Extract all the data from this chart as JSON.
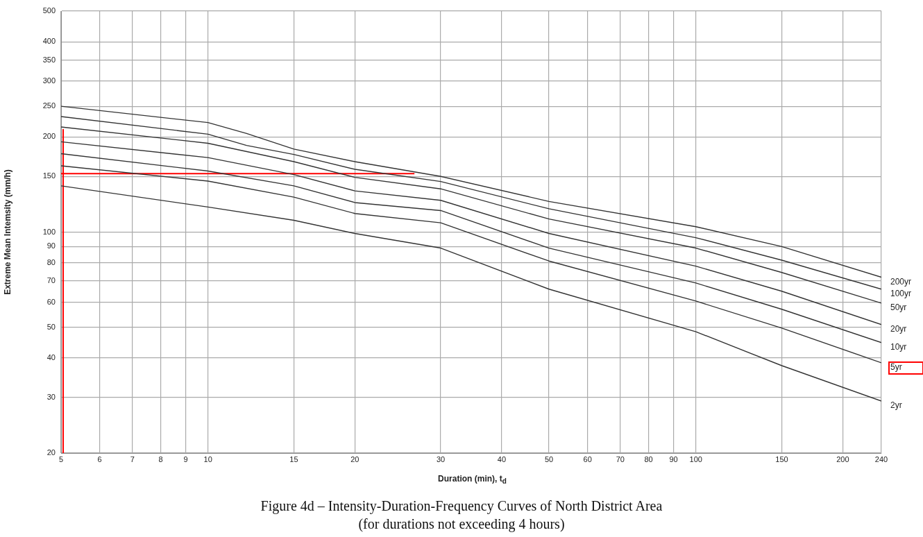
{
  "chart_data": {
    "type": "line",
    "title": "Figure 4d – Intensity-Duration-Frequency Curves of North District Area",
    "subtitle": "(for durations not exceeding 4 hours)",
    "xlabel": "Duration (min), t$_{d}$",
    "ylabel": "Extreme Mean Intemsity (mm/h)",
    "log": "xy",
    "grid": true,
    "legend": false,
    "marker": "none",
    "line_style": "solid",
    "x": [
      5,
      10,
      15,
      20,
      30,
      50,
      100,
      150,
      240
    ],
    "xlim": [
      5,
      240
    ],
    "xticks": [
      5,
      6,
      7,
      8,
      9,
      10,
      15,
      20,
      30,
      40,
      50,
      60,
      70,
      80,
      90,
      100,
      150,
      200,
      240
    ],
    "ylim": [
      20,
      500
    ],
    "yticks": [
      20,
      30,
      40,
      50,
      60,
      70,
      80,
      90,
      100,
      150,
      200,
      250,
      300,
      350,
      400,
      500
    ],
    "series": [
      {
        "name": "200yr",
        "color": "#333333",
        "x": [
          5,
          10,
          12,
          15,
          20,
          30,
          50,
          100,
          150,
          240
        ],
        "values": [
          250,
          222,
          205,
          183,
          167,
          150,
          125,
          104,
          90,
          72
        ]
      },
      {
        "name": "100yr",
        "color": "#333333",
        "x": [
          5,
          10,
          12,
          15,
          20,
          30,
          50,
          100,
          150,
          240
        ],
        "values": [
          232,
          204,
          188,
          176,
          158,
          144.5,
          118.5,
          96,
          81.5,
          66
        ]
      },
      {
        "name": "50yr",
        "color": "#333333",
        "values": [
          215,
          191,
          167,
          149,
          137,
          110,
          89,
          74.5,
          59.6
        ]
      },
      {
        "name": "20yr",
        "color": "#333333",
        "values": [
          193,
          172,
          152,
          135,
          126,
          99,
          78,
          65,
          51
        ]
      },
      {
        "name": "10yr",
        "color": "#333333",
        "values": [
          177,
          156,
          140,
          124,
          117,
          89,
          69,
          57,
          44.7
        ]
      },
      {
        "name": "5yr",
        "color": "#333333",
        "values": [
          162,
          145,
          129,
          114.5,
          107,
          81,
          60.5,
          49.7,
          38.6
        ]
      },
      {
        "name": "2yr",
        "color": "#333333",
        "values": [
          140,
          120,
          109,
          99,
          89,
          66,
          48.4,
          37.8,
          29.2
        ]
      },
      {
        "color": "#ff0000",
        "x": [
          5.05,
          5.05
        ],
        "values": [
          211,
          20
        ]
      },
      {
        "color": "#ff0000",
        "x": [
          5,
          26.5
        ],
        "values": [
          153,
          153
        ]
      }
    ]
  }
}
